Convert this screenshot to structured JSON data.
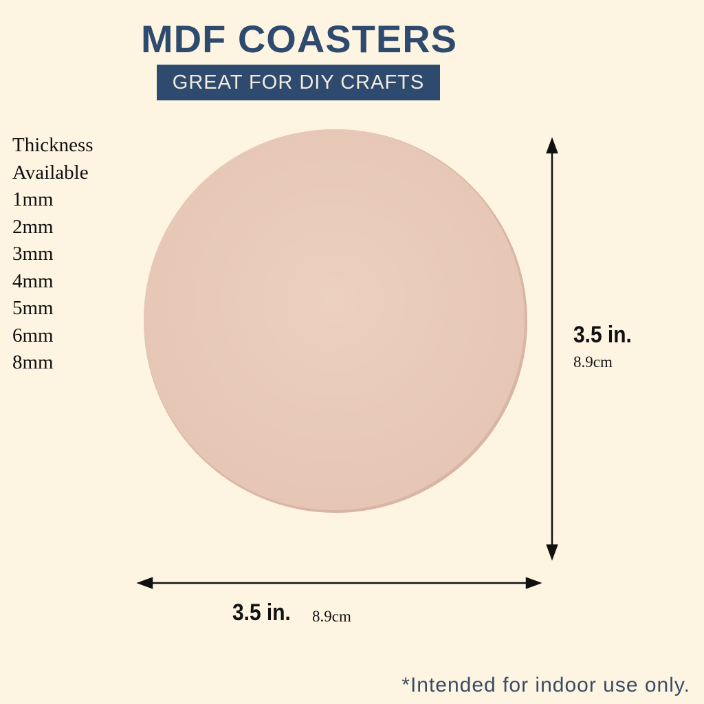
{
  "header": {
    "title": "MDF COASTERS",
    "subtitle": "GREAT FOR DIY CRAFTS"
  },
  "thickness": {
    "heading": [
      "Thickness",
      "Available"
    ],
    "options": [
      "1mm",
      "2mm",
      "3mm",
      "4mm",
      "5mm",
      "6mm",
      "8mm"
    ]
  },
  "height_dimension": {
    "imperial": "3.5 in.",
    "metric": "8.9cm"
  },
  "width_dimension": {
    "imperial": "3.5 in.",
    "metric": "8.9cm"
  },
  "footnote": "*Intended for indoor use only."
}
